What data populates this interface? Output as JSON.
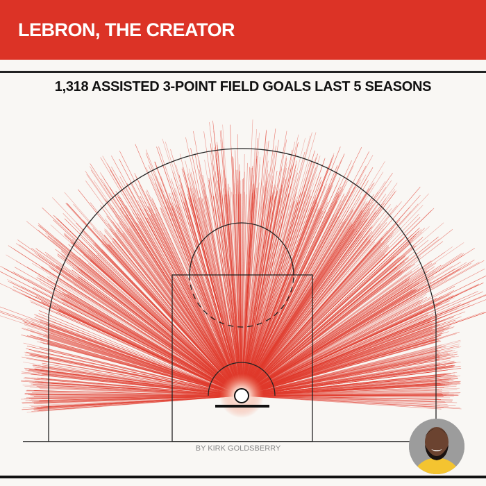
{
  "header": {
    "title": "LEBRON, THE CREATOR",
    "color": "#dc3326"
  },
  "subtitle": "1,318 ASSISTED 3-POINT FIELD GOALS LAST 5 SEASONS",
  "credit": "BY KIRK GOLDSBERRY",
  "photo": {
    "icon": "player-portrait",
    "shirt_color": "#f4c430"
  },
  "chart_data": {
    "type": "shot-chart-lines",
    "description_count": 1318,
    "series": [
      {
        "values_shown": "assisted 3-point field goals, lines from pass origin to shot location"
      }
    ],
    "line_color": "#e03a2c",
    "court": "half court, basket at bottom"
  }
}
